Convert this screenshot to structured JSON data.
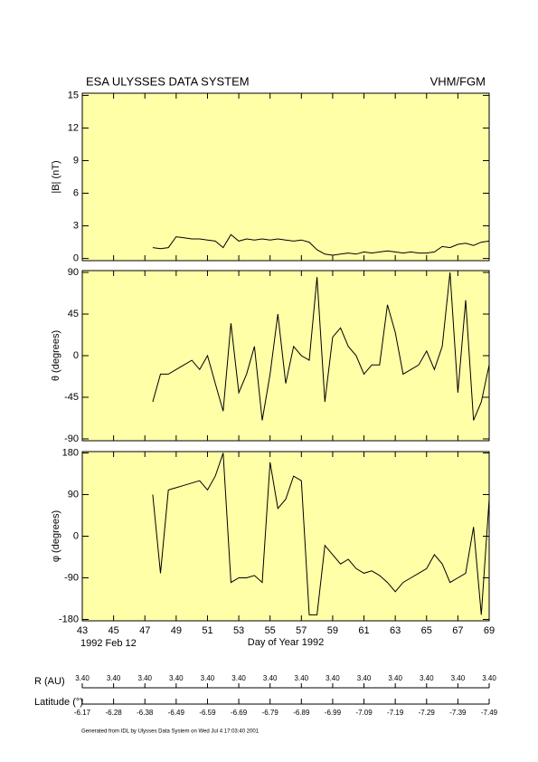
{
  "header": {
    "title": "ESA ULYSSES DATA SYSTEM",
    "instrument": "VHM/FGM"
  },
  "chart_data": [
    {
      "type": "line",
      "ylabel": "|B| (nT)",
      "color": "#000000",
      "x": [
        47.5,
        48,
        48.5,
        49,
        49.5,
        50,
        50.5,
        51,
        51.5,
        52,
        52.5,
        53,
        53.5,
        54,
        54.5,
        55,
        55.5,
        56,
        56.5,
        57,
        57.5,
        58,
        58.5,
        59,
        59.5,
        60,
        60.5,
        61,
        61.5,
        62,
        62.5,
        63,
        63.5,
        64,
        64.5,
        65,
        65.5,
        66,
        66.5,
        67,
        67.5,
        68,
        68.5,
        69
      ],
      "values": [
        1.0,
        0.9,
        1.0,
        2.0,
        1.9,
        1.8,
        1.8,
        1.7,
        1.6,
        1.0,
        2.2,
        1.6,
        1.8,
        1.7,
        1.8,
        1.7,
        1.8,
        1.7,
        1.6,
        1.7,
        1.5,
        0.8,
        0.4,
        0.3,
        0.4,
        0.5,
        0.4,
        0.6,
        0.5,
        0.6,
        0.7,
        0.6,
        0.5,
        0.6,
        0.5,
        0.5,
        0.6,
        1.1,
        1.0,
        1.3,
        1.4,
        1.2,
        1.5,
        1.6
      ],
      "xlim": [
        43,
        69
      ],
      "xticks": [
        43,
        45,
        47,
        49,
        51,
        53,
        55,
        57,
        59,
        61,
        63,
        65,
        67,
        69
      ],
      "ylim": [
        -0.2,
        15.2
      ],
      "yticks": [
        0,
        3,
        6,
        9,
        12,
        15
      ]
    },
    {
      "type": "line",
      "ylabel": "θ (degrees)",
      "color": "#000000",
      "x": [
        47.5,
        48,
        48.5,
        49,
        49.5,
        50,
        50.5,
        51,
        51.5,
        52,
        52.5,
        53,
        53.5,
        54,
        54.5,
        55,
        55.5,
        56,
        56.5,
        57,
        57.5,
        58,
        58.5,
        59,
        59.5,
        60,
        60.5,
        61,
        61.5,
        62,
        62.5,
        63,
        63.5,
        64,
        64.5,
        65,
        65.5,
        66,
        66.5,
        67,
        67.5,
        68,
        68.5,
        69
      ],
      "values": [
        -50,
        -20,
        -20,
        -15,
        -10,
        -5,
        -15,
        0,
        -30,
        -60,
        35,
        -40,
        -20,
        10,
        -70,
        -20,
        45,
        -30,
        10,
        0,
        -5,
        85,
        -50,
        20,
        30,
        10,
        0,
        -20,
        -10,
        -10,
        55,
        25,
        -20,
        -15,
        -10,
        5,
        -15,
        10,
        90,
        -40,
        60,
        -70,
        -50,
        -10
      ],
      "xlim": [
        43,
        69
      ],
      "xticks": [
        43,
        45,
        47,
        49,
        51,
        53,
        55,
        57,
        59,
        61,
        63,
        65,
        67,
        69
      ],
      "ylim": [
        -92,
        92
      ],
      "yticks": [
        -90,
        -45,
        0,
        45,
        90
      ]
    },
    {
      "type": "line",
      "ylabel": "φ (degrees)",
      "color": "#000000",
      "xlabel": "Day of Year 1992",
      "start_date": "1992 Feb 12",
      "x": [
        47.5,
        48,
        48.5,
        49,
        49.5,
        50,
        50.5,
        51,
        51.5,
        52,
        52.5,
        53,
        53.5,
        54,
        54.5,
        55,
        55.5,
        56,
        56.5,
        57,
        57.5,
        58,
        58.5,
        59,
        59.5,
        60,
        60.5,
        61,
        61.5,
        62,
        62.5,
        63,
        63.5,
        64,
        64.5,
        65,
        65.5,
        66,
        66.5,
        67,
        67.5,
        68,
        68.5,
        69
      ],
      "values": [
        90,
        -80,
        100,
        105,
        110,
        115,
        120,
        100,
        130,
        180,
        -100,
        -90,
        -90,
        -85,
        -100,
        160,
        60,
        80,
        130,
        120,
        -170,
        -170,
        -20,
        -40,
        -60,
        -50,
        -70,
        -80,
        -75,
        -85,
        -100,
        -120,
        -100,
        -90,
        -80,
        -70,
        -40,
        -60,
        -100,
        -90,
        -80,
        20,
        -170,
        80
      ],
      "xlim": [
        43,
        69
      ],
      "xticks": [
        43,
        45,
        47,
        49,
        51,
        53,
        55,
        57,
        59,
        61,
        63,
        65,
        67,
        69
      ],
      "ylim": [
        -183,
        183
      ],
      "yticks": [
        -180,
        -90,
        0,
        90,
        180
      ]
    }
  ],
  "ephemeris": {
    "r_label": "R (AU)",
    "lat_label": "Latitude (°)",
    "r_values": [
      {
        "value": 3.4,
        "label": "3.40"
      },
      {
        "value": 3.4,
        "label": "3.40"
      },
      {
        "value": 3.4,
        "label": "3.40"
      },
      {
        "value": 3.4,
        "label": "3.40"
      },
      {
        "value": 3.4,
        "label": "3.40"
      },
      {
        "value": 3.4,
        "label": "3.40"
      },
      {
        "value": 3.4,
        "label": "3.40"
      },
      {
        "value": 3.4,
        "label": "3.40"
      },
      {
        "value": 3.4,
        "label": "3.40"
      },
      {
        "value": 3.4,
        "label": "3.40"
      },
      {
        "value": 3.4,
        "label": "3.40"
      },
      {
        "value": 3.4,
        "label": "3.40"
      },
      {
        "value": 3.4,
        "label": "3.40"
      },
      {
        "value": 3.4,
        "label": "3.40"
      }
    ],
    "lat_values": [
      -6.17,
      -6.28,
      -6.38,
      -6.49,
      -6.59,
      -6.69,
      -6.79,
      -6.89,
      -6.99,
      -7.09,
      -7.19,
      -7.29,
      -7.39,
      -7.49
    ]
  },
  "footer": "Generated from IDL by Ulysses Data System on Wed Jul 4 17:03:40 2001"
}
